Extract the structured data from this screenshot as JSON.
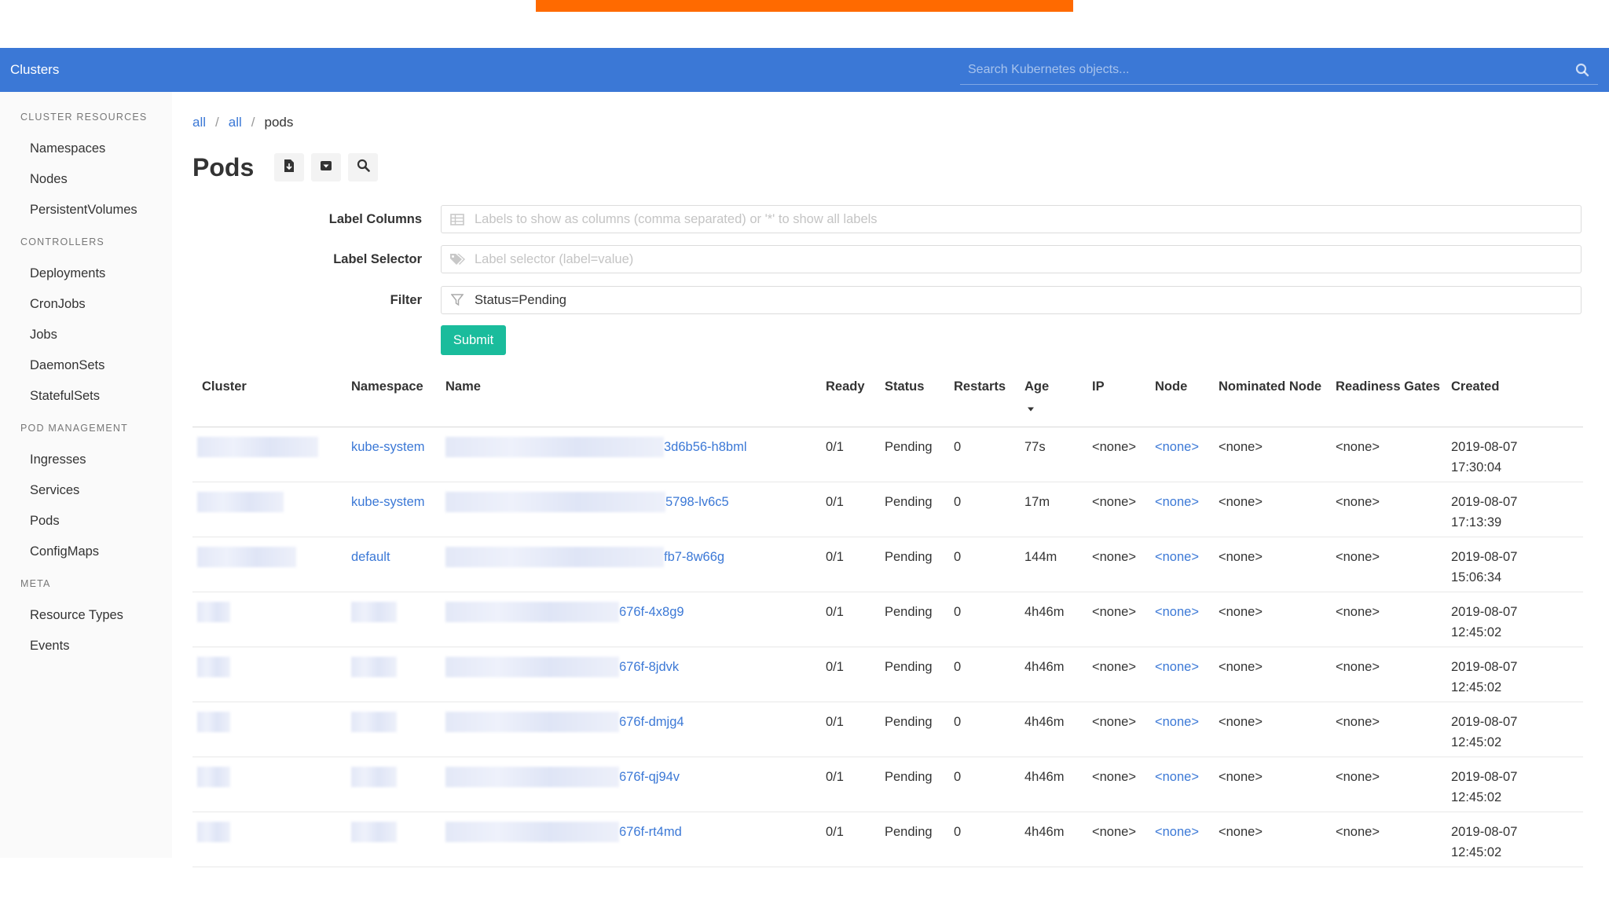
{
  "topbar": {
    "brand": "Clusters",
    "search_placeholder": "Search Kubernetes objects...",
    "search_icon": "search-icon",
    "accent_color": "#3b78d6"
  },
  "sidebar": {
    "groups": [
      {
        "title": "CLUSTER RESOURCES",
        "items": [
          "Namespaces",
          "Nodes",
          "PersistentVolumes"
        ]
      },
      {
        "title": "CONTROLLERS",
        "items": [
          "Deployments",
          "CronJobs",
          "Jobs",
          "DaemonSets",
          "StatefulSets"
        ]
      },
      {
        "title": "POD MANAGEMENT",
        "items": [
          "Ingresses",
          "Services",
          "Pods",
          "ConfigMaps"
        ]
      },
      {
        "title": "META",
        "items": [
          "Resource Types",
          "Events"
        ]
      }
    ]
  },
  "breadcrumb": {
    "items": [
      "all",
      "all"
    ],
    "current": "pods"
  },
  "page": {
    "title": "Pods",
    "toolbar_icons": [
      "download-icon",
      "caret-down-box-icon",
      "search-icon"
    ]
  },
  "filters": {
    "label_columns": {
      "label": "Label Columns",
      "placeholder": "Labels to show as columns (comma separated) or '*' to show all labels",
      "icon": "columns-icon"
    },
    "label_selector": {
      "label": "Label Selector",
      "placeholder": "Label selector (label=value)",
      "icon": "tag-icon"
    },
    "filter": {
      "label": "Filter",
      "value": "Status=Pending",
      "icon": "funnel-icon"
    },
    "submit_label": "Submit",
    "submit_color": "#1abc9c"
  },
  "table": {
    "headers": {
      "cluster": "Cluster",
      "namespace": "Namespace",
      "name": "Name",
      "ready": "Ready",
      "status": "Status",
      "restarts": "Restarts",
      "age": "Age",
      "ip": "IP",
      "node": "Node",
      "nominated_node": "Nominated Node",
      "readiness_gates": "Readiness Gates",
      "created": "Created"
    },
    "sorted_by": "Age",
    "rows": [
      {
        "namespace": "kube-system",
        "name_suffix": "3d6b56-h8bml",
        "ready": "0/1",
        "status": "Pending",
        "restarts": "0",
        "age": "77s",
        "ip": "<none>",
        "node": "<none>",
        "nominated_node": "<none>",
        "readiness_gates": "<none>",
        "created_date": "2019-08-07",
        "created_time": "17:30:04"
      },
      {
        "namespace": "kube-system",
        "name_suffix": "5798-lv6c5",
        "ready": "0/1",
        "status": "Pending",
        "restarts": "0",
        "age": "17m",
        "ip": "<none>",
        "node": "<none>",
        "nominated_node": "<none>",
        "readiness_gates": "<none>",
        "created_date": "2019-08-07",
        "created_time": "17:13:39"
      },
      {
        "namespace": "default",
        "name_suffix": "fb7-8w66g",
        "ready": "0/1",
        "status": "Pending",
        "restarts": "0",
        "age": "144m",
        "ip": "<none>",
        "node": "<none>",
        "nominated_node": "<none>",
        "readiness_gates": "<none>",
        "created_date": "2019-08-07",
        "created_time": "15:06:34"
      },
      {
        "namespace": "",
        "name_suffix": "676f-4x8g9",
        "ready": "0/1",
        "status": "Pending",
        "restarts": "0",
        "age": "4h46m",
        "ip": "<none>",
        "node": "<none>",
        "nominated_node": "<none>",
        "readiness_gates": "<none>",
        "created_date": "2019-08-07",
        "created_time": "12:45:02"
      },
      {
        "namespace": "",
        "name_suffix": "676f-8jdvk",
        "ready": "0/1",
        "status": "Pending",
        "restarts": "0",
        "age": "4h46m",
        "ip": "<none>",
        "node": "<none>",
        "nominated_node": "<none>",
        "readiness_gates": "<none>",
        "created_date": "2019-08-07",
        "created_time": "12:45:02"
      },
      {
        "namespace": "",
        "name_suffix": "676f-dmjg4",
        "ready": "0/1",
        "status": "Pending",
        "restarts": "0",
        "age": "4h46m",
        "ip": "<none>",
        "node": "<none>",
        "nominated_node": "<none>",
        "readiness_gates": "<none>",
        "created_date": "2019-08-07",
        "created_time": "12:45:02"
      },
      {
        "namespace": "",
        "name_suffix": "676f-qj94v",
        "ready": "0/1",
        "status": "Pending",
        "restarts": "0",
        "age": "4h46m",
        "ip": "<none>",
        "node": "<none>",
        "nominated_node": "<none>",
        "readiness_gates": "<none>",
        "created_date": "2019-08-07",
        "created_time": "12:45:02"
      },
      {
        "namespace": "",
        "name_suffix": "676f-rt4md",
        "ready": "0/1",
        "status": "Pending",
        "restarts": "0",
        "age": "4h46m",
        "ip": "<none>",
        "node": "<none>",
        "nominated_node": "<none>",
        "readiness_gates": "<none>",
        "created_date": "2019-08-07",
        "created_time": "12:45:02"
      }
    ],
    "status_color": "#f5d038",
    "age_color": "#22a745",
    "link_color": "#3b78d6"
  }
}
